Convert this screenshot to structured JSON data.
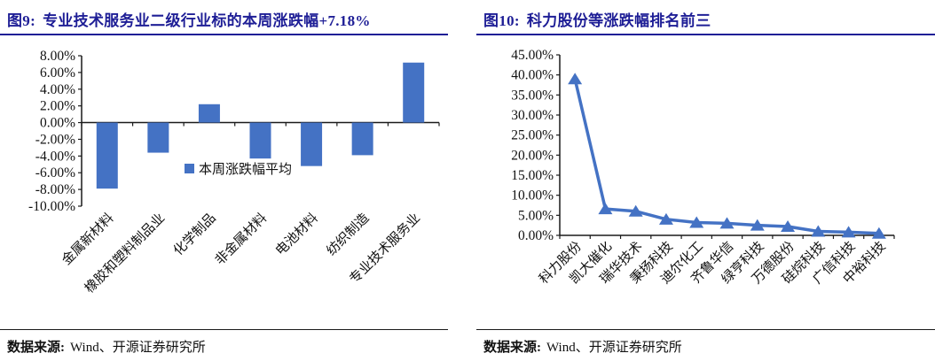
{
  "colors": {
    "accent": "#4472C4",
    "title": "#1e1e96",
    "axis": "#1a1a1a"
  },
  "figure9": {
    "label": "图9:",
    "title": "专业技术服务业二级行业标的本周涨跌幅+7.18%",
    "source_label": "数据来源:",
    "source": "Wind、开源证券研究所",
    "chart_data": {
      "type": "bar",
      "categories": [
        "金属新材料",
        "橡胶和塑料制品业",
        "化学制品",
        "非金属材料",
        "电池材料",
        "纺织制造",
        "专业技术服务业"
      ],
      "values": [
        -7.9,
        -3.6,
        2.2,
        -4.3,
        -5.2,
        -3.9,
        7.18
      ],
      "unit": "%",
      "title": "",
      "xlabel": "",
      "ylabel": "",
      "ylim": [
        -10,
        8
      ],
      "ytick_step": 2,
      "ytick_format": "0.00%",
      "grid": false,
      "legend": [
        "本周涨跌幅平均"
      ],
      "legend_position": "inside-plot-center",
      "bar_color": "#4472C4"
    }
  },
  "figure10": {
    "label": "图10:",
    "title": "科力股份等涨跌幅排名前三",
    "source_label": "数据来源:",
    "source": "Wind、开源证券研究所",
    "chart_data": {
      "type": "line",
      "categories": [
        "科力股份",
        "凯大催化",
        "瑞华技术",
        "秉扬科技",
        "迪尔化工",
        "齐鲁华信",
        "绿亨科技",
        "万德股份",
        "硅烷科技",
        "广信科技",
        "中裕科技"
      ],
      "values": [
        39.0,
        6.6,
        6.0,
        4.0,
        3.2,
        3.0,
        2.5,
        2.2,
        1.0,
        0.8,
        0.5
      ],
      "unit": "%",
      "title": "",
      "xlabel": "",
      "ylabel": "",
      "ylim": [
        0,
        45
      ],
      "ytick_step": 5,
      "ytick_format": "0.00%",
      "grid": false,
      "legend": [],
      "marker": "triangle-up",
      "line_color": "#4472C4"
    }
  }
}
